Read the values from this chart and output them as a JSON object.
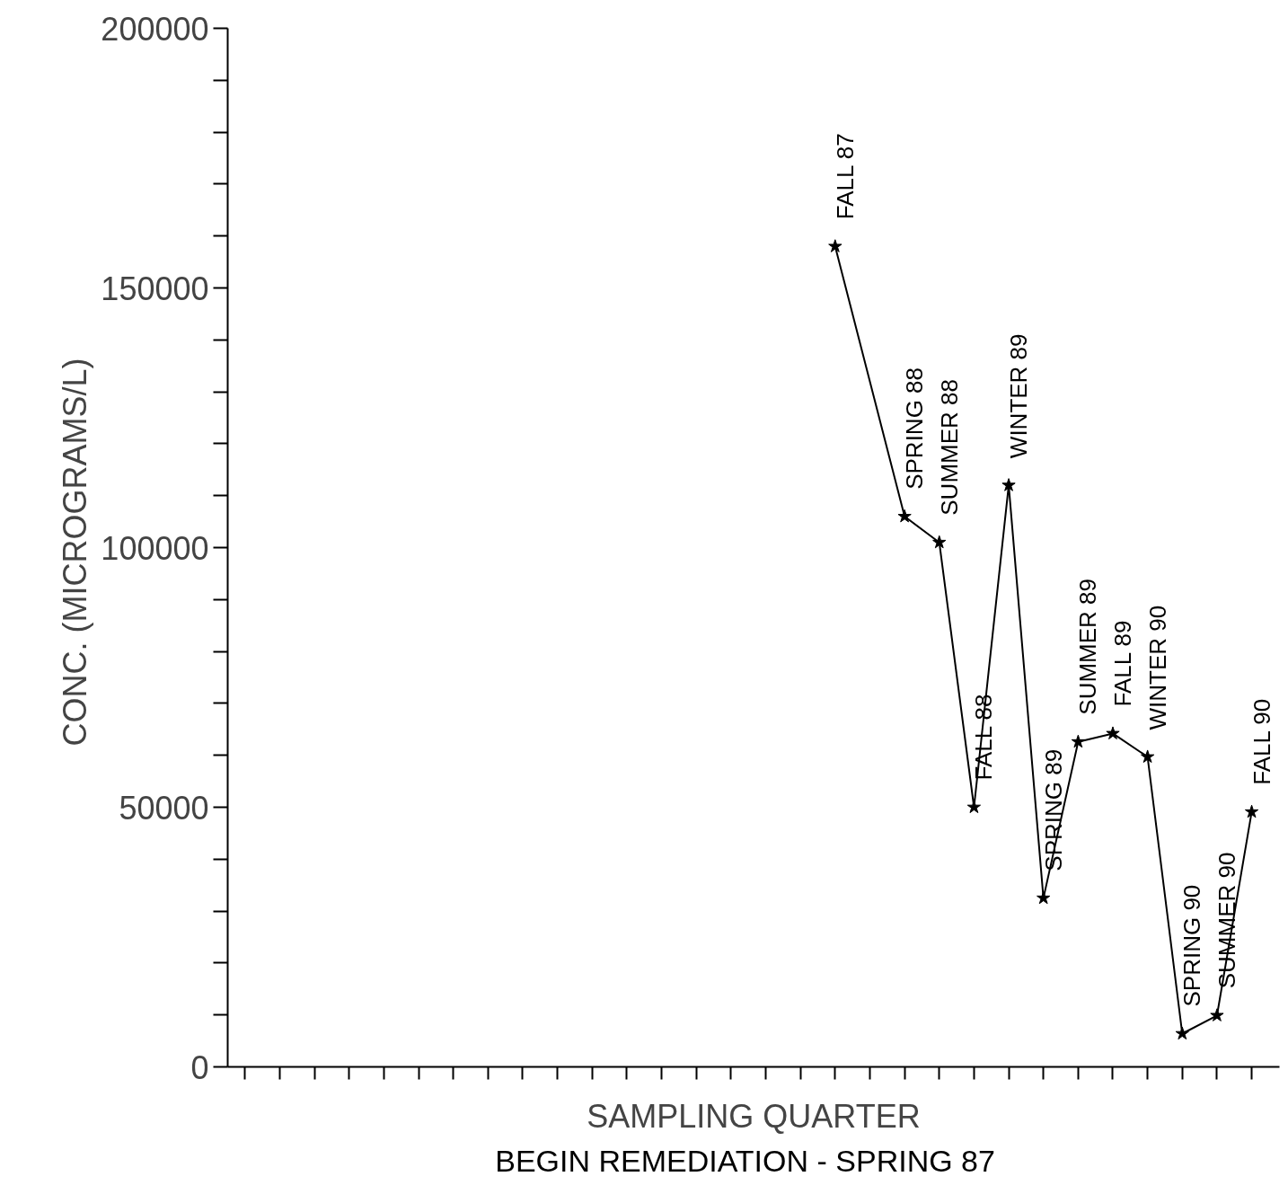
{
  "chart_data": {
    "type": "line",
    "categories": [
      null,
      null,
      null,
      null,
      null,
      null,
      null,
      null,
      null,
      null,
      null,
      null,
      null,
      null,
      null,
      null,
      null,
      "FALL 87",
      null,
      "SPRING 88",
      "SUMMER 88",
      "FALL 88",
      "WINTER 89",
      "SPRING 89",
      "SUMMER 89",
      "FALL 89",
      "WINTER 90",
      "SPRING 90",
      "SUMMER 90",
      "FALL 90"
    ],
    "values": [
      null,
      null,
      null,
      null,
      null,
      null,
      null,
      null,
      null,
      null,
      null,
      null,
      null,
      null,
      null,
      null,
      null,
      158000,
      null,
      106000,
      101000,
      50000,
      112000,
      32500,
      62600,
      64200,
      59700,
      6400,
      9900,
      49100
    ],
    "color": "#000000",
    "marker": "star",
    "ylim": [
      0,
      200000
    ],
    "yticks": [
      0,
      {
        "value": 10000,
        "label": null
      },
      {
        "value": 20000,
        "label": null
      },
      {
        "value": 30000,
        "label": null
      },
      {
        "value": 40000,
        "label": null
      },
      50000,
      {
        "value": 60000,
        "label": null
      },
      {
        "value": 70000,
        "label": null
      },
      {
        "value": 80000,
        "label": null
      },
      {
        "value": 90000,
        "label": null
      },
      100000,
      {
        "value": 110000,
        "label": null
      },
      {
        "value": 120000,
        "label": null
      },
      {
        "value": 130000,
        "label": null
      },
      {
        "value": 140000,
        "label": null
      },
      150000,
      {
        "value": 160000,
        "label": null
      },
      {
        "value": 170000,
        "label": null
      },
      {
        "value": 180000,
        "label": null
      },
      {
        "value": 190000,
        "label": null
      },
      200000
    ],
    "ylabel": "CONC.  (MICROGRAMS/L)",
    "xlabel": "SAMPLING QUARTER",
    "annotations": [
      "BEGIN REMEDIATION  -  SPRING 87"
    ],
    "grid": false,
    "tick_labels": "y"
  }
}
